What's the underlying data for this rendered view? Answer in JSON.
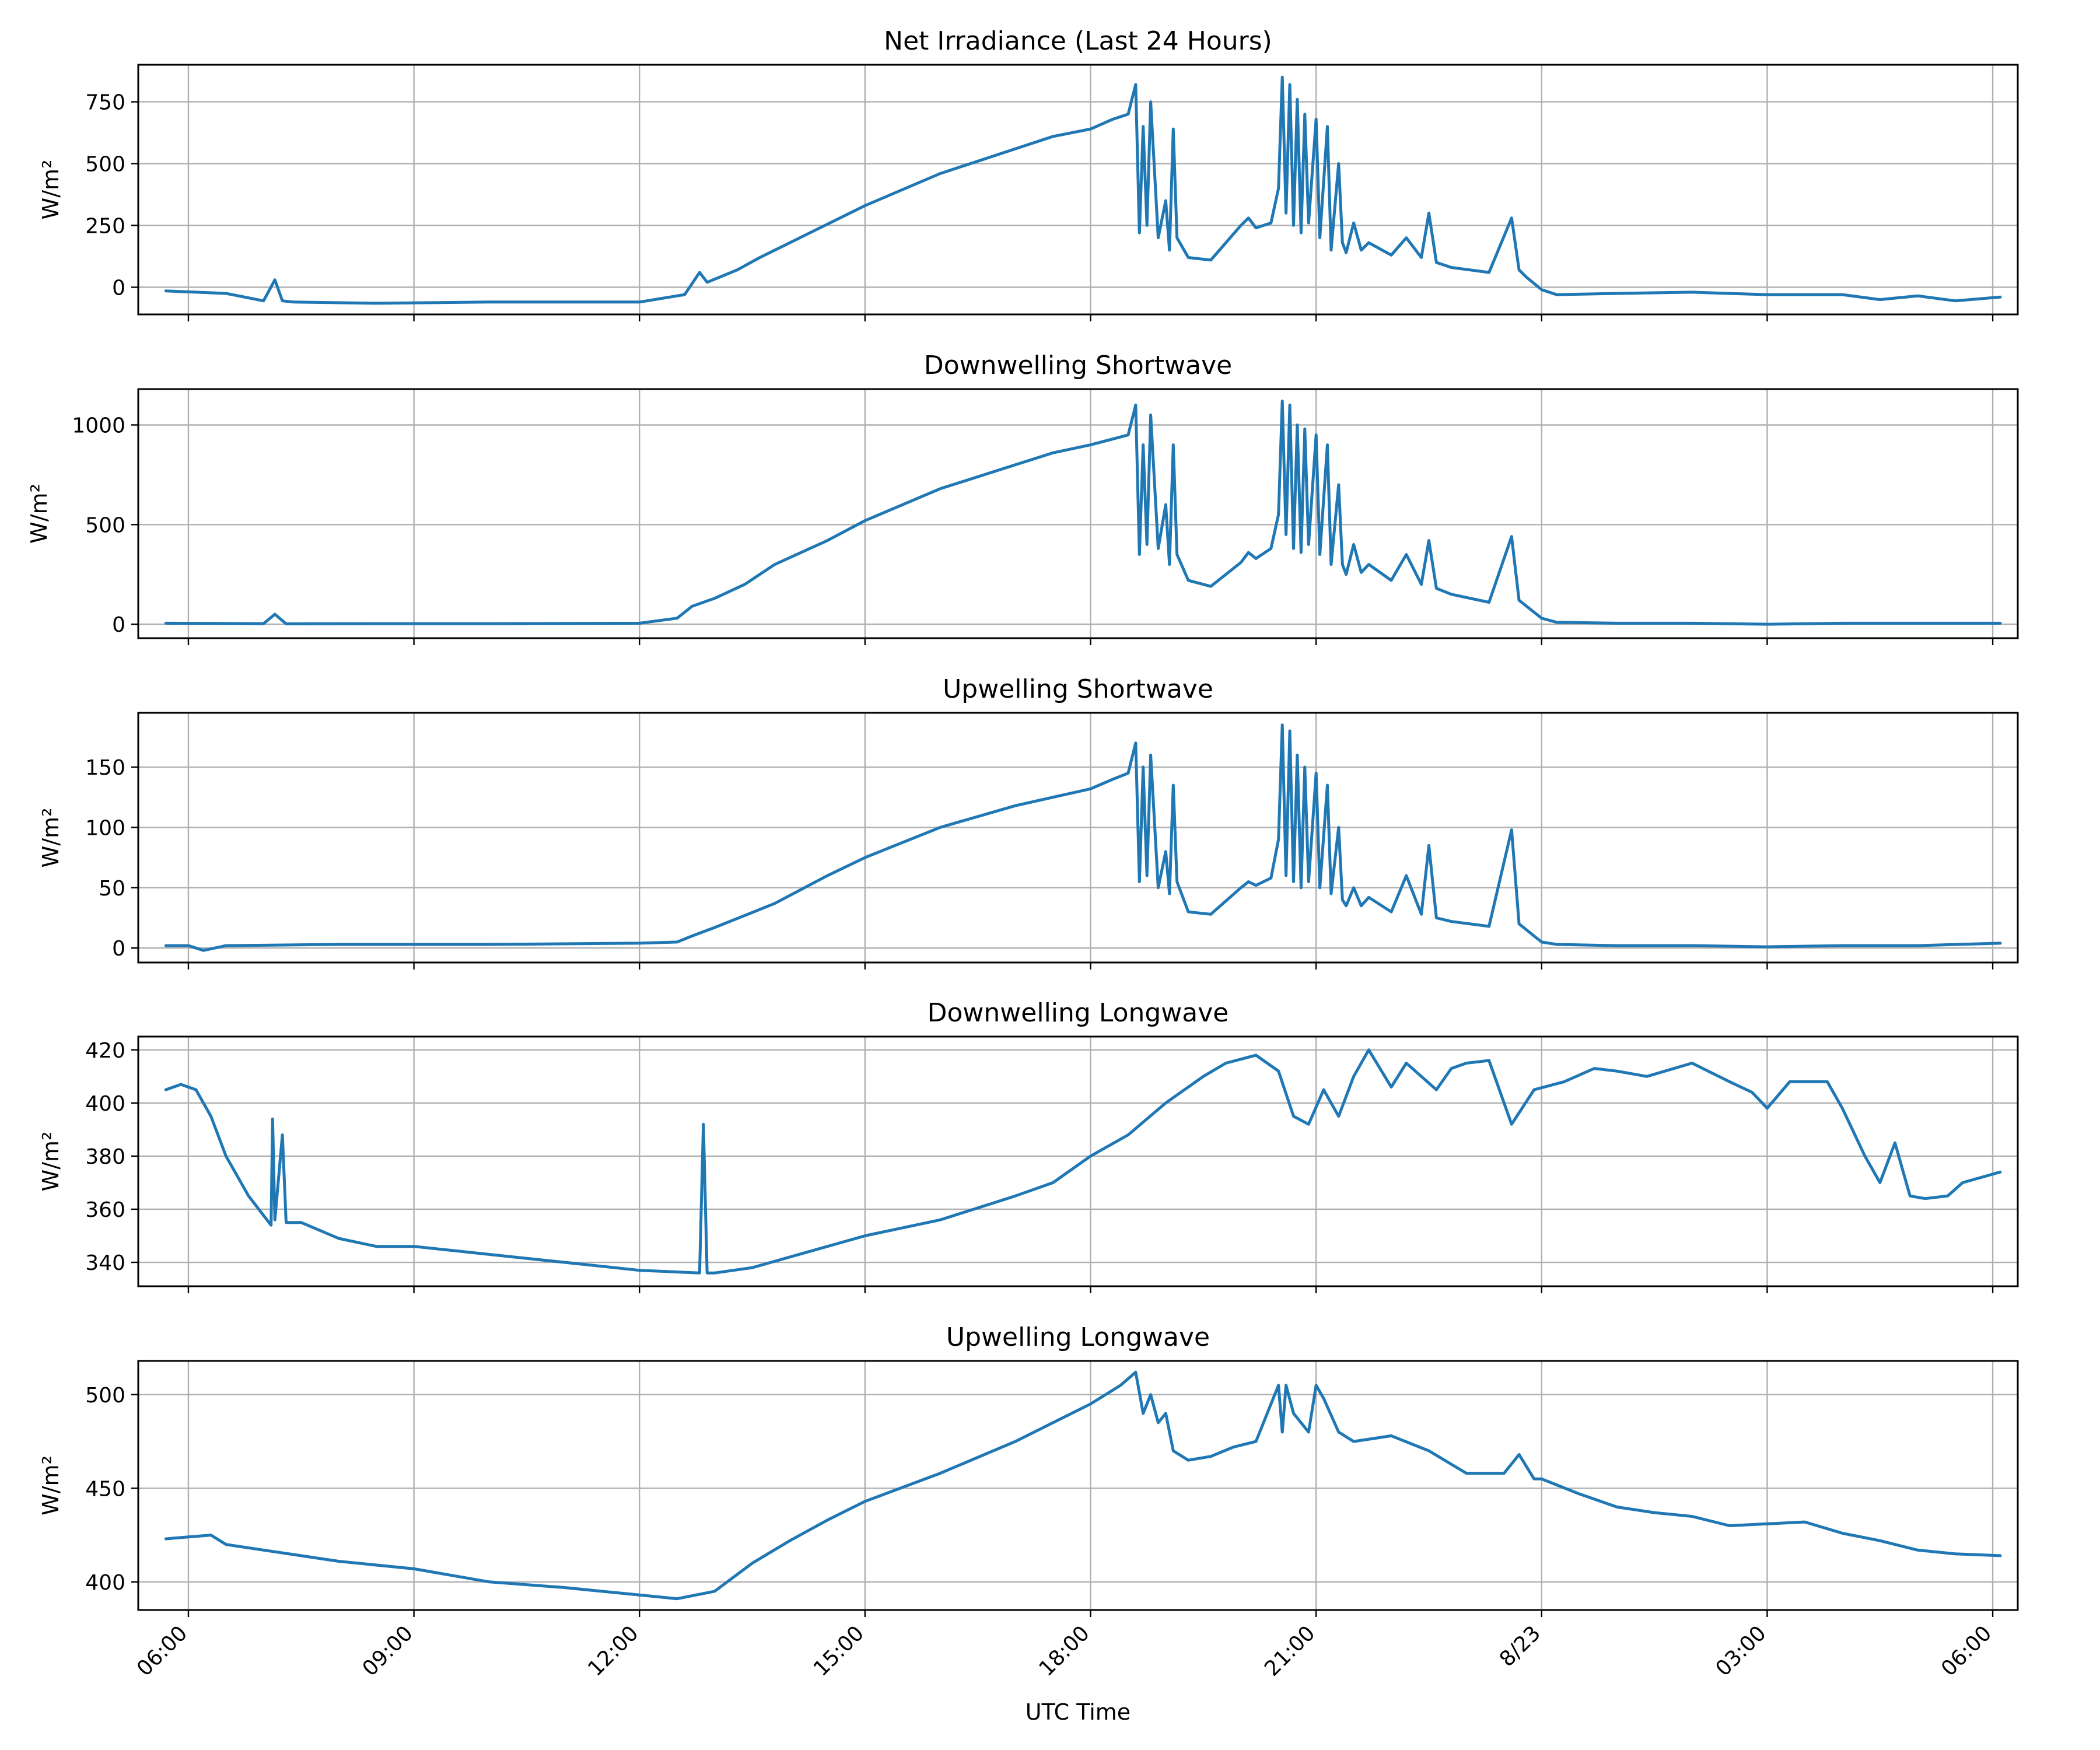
{
  "colors": {
    "series": "#1f77b4",
    "grid": "#b0b0b0"
  },
  "chart_data": [
    {
      "type": "line",
      "title": "Net Irradiance (Last 24 Hours)",
      "ylabel": "W/m²",
      "xlim": [
        5.333,
        30.333
      ],
      "ylim": [
        -110,
        900
      ],
      "yticks": [
        0,
        250,
        500,
        750
      ],
      "grid": true,
      "series": [
        {
          "x": [
            5.7,
            6.5,
            7.0,
            7.15,
            7.25,
            7.4,
            8.5,
            10,
            12,
            12.6,
            12.8,
            12.9,
            13.3,
            13.6,
            14,
            15,
            16,
            17,
            17.5,
            18,
            18.3,
            18.5,
            18.6,
            18.65,
            18.7,
            18.75,
            18.8,
            18.9,
            19.0,
            19.05,
            19.1,
            19.15,
            19.3,
            19.6,
            20.0,
            20.1,
            20.2,
            20.4,
            20.5,
            20.55,
            20.6,
            20.65,
            20.7,
            20.75,
            20.8,
            20.85,
            20.9,
            21.0,
            21.05,
            21.15,
            21.2,
            21.3,
            21.35,
            21.4,
            21.5,
            21.6,
            21.7,
            22.0,
            22.2,
            22.4,
            22.5,
            22.6,
            22.8,
            23.3,
            23.6,
            23.7,
            23.8,
            24.0,
            24.2,
            25,
            26,
            27,
            28,
            28.5,
            29,
            29.5,
            30.1
          ],
          "values": [
            -15,
            -25,
            -55,
            30,
            -55,
            -60,
            -65,
            -60,
            -60,
            -30,
            60,
            20,
            70,
            120,
            180,
            330,
            460,
            560,
            610,
            640,
            680,
            700,
            820,
            220,
            650,
            250,
            750,
            200,
            350,
            150,
            640,
            200,
            120,
            110,
            250,
            280,
            240,
            260,
            400,
            850,
            300,
            820,
            250,
            760,
            220,
            700,
            260,
            680,
            200,
            650,
            150,
            500,
            180,
            140,
            260,
            150,
            180,
            130,
            200,
            120,
            300,
            100,
            80,
            60,
            280,
            70,
            40,
            -10,
            -30,
            -25,
            -20,
            -30,
            -30,
            -50,
            -35,
            -55,
            -40
          ]
        }
      ]
    },
    {
      "type": "line",
      "title": "Downwelling Shortwave",
      "ylabel": "W/m²",
      "xlim": [
        5.333,
        30.333
      ],
      "ylim": [
        -70,
        1180
      ],
      "yticks": [
        0,
        500,
        1000
      ],
      "grid": true,
      "series": [
        {
          "x": [
            5.7,
            7.0,
            7.15,
            7.3,
            8.5,
            10,
            12.0,
            12.5,
            12.7,
            13.0,
            13.4,
            13.8,
            14.5,
            15,
            16,
            17,
            17.5,
            18,
            18.3,
            18.5,
            18.6,
            18.65,
            18.7,
            18.75,
            18.8,
            18.9,
            19.0,
            19.05,
            19.1,
            19.15,
            19.3,
            19.6,
            20.0,
            20.1,
            20.2,
            20.4,
            20.5,
            20.55,
            20.6,
            20.65,
            20.7,
            20.75,
            20.8,
            20.85,
            20.9,
            21.0,
            21.05,
            21.15,
            21.2,
            21.3,
            21.35,
            21.4,
            21.5,
            21.6,
            21.7,
            22.0,
            22.2,
            22.4,
            22.5,
            22.6,
            22.8,
            23.3,
            23.6,
            23.7,
            23.8,
            24.0,
            24.2,
            25,
            26,
            27,
            28,
            29,
            30.1
          ],
          "values": [
            5,
            3,
            50,
            2,
            3,
            3,
            5,
            30,
            90,
            130,
            200,
            300,
            420,
            520,
            680,
            800,
            860,
            900,
            930,
            950,
            1100,
            350,
            900,
            400,
            1050,
            380,
            600,
            300,
            900,
            350,
            220,
            190,
            310,
            360,
            330,
            380,
            550,
            1120,
            450,
            1100,
            380,
            1000,
            360,
            980,
            400,
            950,
            350,
            900,
            300,
            700,
            300,
            250,
            400,
            260,
            300,
            220,
            350,
            200,
            420,
            180,
            150,
            110,
            440,
            120,
            90,
            30,
            10,
            5,
            5,
            0,
            5,
            5,
            5
          ]
        }
      ]
    },
    {
      "type": "line",
      "title": "Upwelling Shortwave",
      "ylabel": "W/m²",
      "xlim": [
        5.333,
        30.333
      ],
      "ylim": [
        -12,
        195
      ],
      "yticks": [
        0,
        50,
        100,
        150
      ],
      "grid": true,
      "series": [
        {
          "x": [
            5.7,
            6.0,
            6.2,
            6.5,
            8,
            10,
            12.0,
            12.5,
            12.7,
            13.0,
            13.4,
            13.8,
            14.5,
            15,
            16,
            17,
            17.5,
            18,
            18.3,
            18.5,
            18.6,
            18.65,
            18.7,
            18.75,
            18.8,
            18.9,
            19.0,
            19.05,
            19.1,
            19.15,
            19.3,
            19.6,
            20.0,
            20.1,
            20.2,
            20.4,
            20.5,
            20.55,
            20.6,
            20.65,
            20.7,
            20.75,
            20.8,
            20.85,
            20.9,
            21.0,
            21.05,
            21.15,
            21.2,
            21.3,
            21.35,
            21.4,
            21.5,
            21.6,
            21.7,
            22.0,
            22.2,
            22.4,
            22.5,
            22.6,
            22.8,
            23.3,
            23.6,
            23.7,
            23.8,
            24.0,
            24.2,
            25,
            26,
            27,
            28,
            29,
            30.1
          ],
          "values": [
            2,
            2,
            -2,
            2,
            3,
            3,
            4,
            5,
            10,
            17,
            27,
            37,
            60,
            75,
            100,
            118,
            125,
            132,
            140,
            145,
            170,
            55,
            150,
            60,
            160,
            50,
            80,
            45,
            135,
            55,
            30,
            28,
            50,
            55,
            52,
            58,
            90,
            185,
            60,
            180,
            55,
            160,
            50,
            150,
            55,
            145,
            50,
            135,
            45,
            100,
            40,
            35,
            50,
            35,
            42,
            30,
            60,
            28,
            85,
            25,
            22,
            18,
            98,
            20,
            15,
            5,
            3,
            2,
            2,
            1,
            2,
            2,
            4
          ]
        }
      ]
    },
    {
      "type": "line",
      "title": "Downwelling Longwave",
      "ylabel": "W/m²",
      "xlim": [
        5.333,
        30.333
      ],
      "ylim": [
        331,
        425
      ],
      "yticks": [
        340,
        360,
        380,
        400,
        420
      ],
      "grid": true,
      "series": [
        {
          "x": [
            5.7,
            5.9,
            6.1,
            6.3,
            6.5,
            6.8,
            7.1,
            7.12,
            7.15,
            7.25,
            7.3,
            7.5,
            8.0,
            8.5,
            9.0,
            10.0,
            11.0,
            12.0,
            12.8,
            12.85,
            12.9,
            13.0,
            13.5,
            14.0,
            15.0,
            16.0,
            17.0,
            17.5,
            18.0,
            18.5,
            19.0,
            19.5,
            19.8,
            20.2,
            20.5,
            20.7,
            20.9,
            21.1,
            21.3,
            21.5,
            21.7,
            22.0,
            22.2,
            22.6,
            22.8,
            23.0,
            23.3,
            23.6,
            23.9,
            24.3,
            24.7,
            25.0,
            25.4,
            26.0,
            26.5,
            26.8,
            27.0,
            27.3,
            27.8,
            28.0,
            28.3,
            28.5,
            28.7,
            28.9,
            29.1,
            29.4,
            29.6,
            30.1
          ],
          "values": [
            405,
            407,
            405,
            395,
            380,
            365,
            354,
            394,
            356,
            388,
            355,
            355,
            349,
            346,
            346,
            343,
            340,
            337,
            336,
            392,
            336,
            336,
            338,
            342,
            350,
            356,
            365,
            370,
            380,
            388,
            400,
            410,
            415,
            418,
            412,
            395,
            392,
            405,
            395,
            410,
            420,
            406,
            415,
            405,
            413,
            415,
            416,
            392,
            405,
            408,
            413,
            412,
            410,
            415,
            408,
            404,
            398,
            408,
            408,
            398,
            380,
            370,
            385,
            365,
            364,
            365,
            370,
            374
          ]
        }
      ]
    },
    {
      "type": "line",
      "title": "Upwelling Longwave",
      "ylabel": "W/m²",
      "xlim": [
        5.333,
        30.333
      ],
      "ylim": [
        385,
        518
      ],
      "yticks": [
        400,
        450,
        500
      ],
      "grid": true,
      "series": [
        {
          "x": [
            5.7,
            6.0,
            6.3,
            6.5,
            7.0,
            8.0,
            9.0,
            10.0,
            11.0,
            12.0,
            12.5,
            13.0,
            13.5,
            14.0,
            14.5,
            15.0,
            16.0,
            17.0,
            17.5,
            18.0,
            18.2,
            18.4,
            18.6,
            18.7,
            18.8,
            18.9,
            19.0,
            19.1,
            19.3,
            19.6,
            19.9,
            20.2,
            20.5,
            20.55,
            20.6,
            20.7,
            20.8,
            20.9,
            21.0,
            21.1,
            21.3,
            21.5,
            22.0,
            22.5,
            23.0,
            23.5,
            23.7,
            23.9,
            24.0,
            24.5,
            25.0,
            25.5,
            26.0,
            26.5,
            27.0,
            27.5,
            28.0,
            28.5,
            29.0,
            29.5,
            30.1
          ],
          "values": [
            423,
            424,
            425,
            420,
            417,
            411,
            407,
            400,
            397,
            393,
            391,
            395,
            410,
            422,
            433,
            443,
            458,
            475,
            485,
            495,
            500,
            505,
            512,
            490,
            500,
            485,
            490,
            470,
            465,
            467,
            472,
            475,
            505,
            480,
            505,
            490,
            485,
            480,
            505,
            498,
            480,
            475,
            478,
            470,
            458,
            458,
            468,
            455,
            455,
            447,
            440,
            437,
            435,
            430,
            431,
            432,
            426,
            422,
            417,
            415,
            414
          ]
        }
      ]
    }
  ],
  "xaxis": {
    "label": "UTC Time",
    "ticks": [
      6,
      9,
      12,
      15,
      18,
      21,
      24,
      27,
      30
    ],
    "tick_labels": [
      "06:00",
      "09:00",
      "12:00",
      "15:00",
      "18:00",
      "21:00",
      "8/23",
      "03:00",
      "06:00"
    ]
  }
}
